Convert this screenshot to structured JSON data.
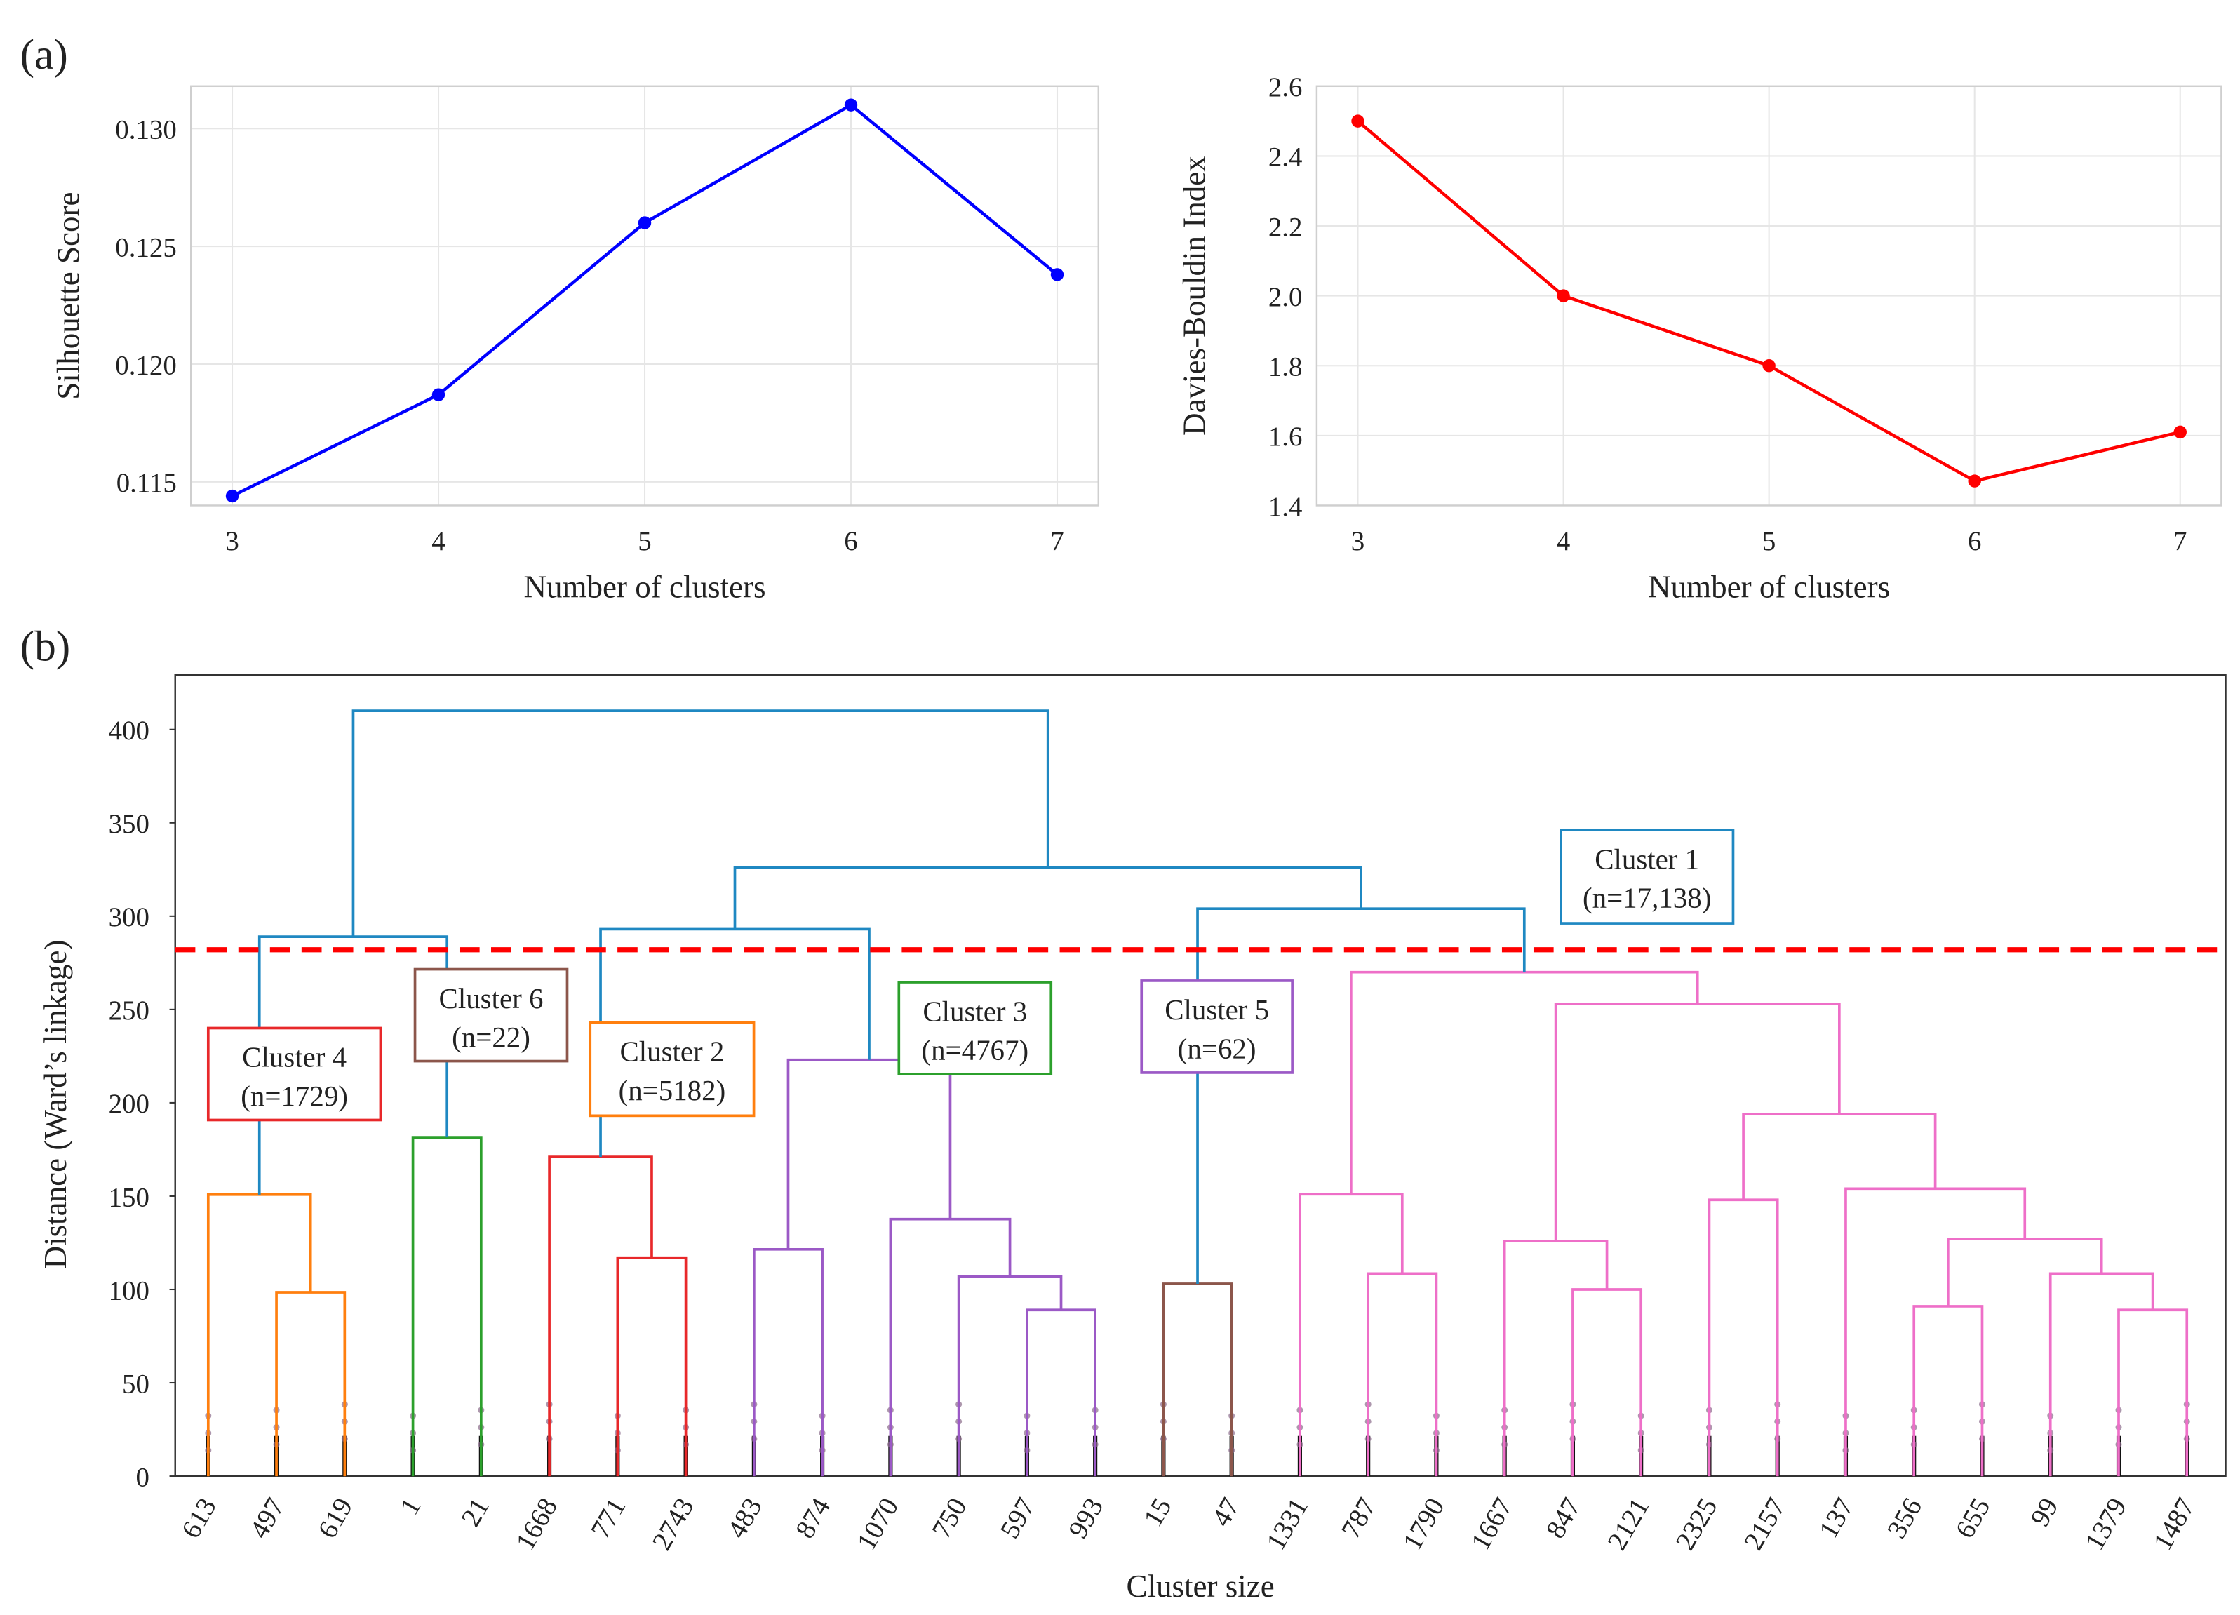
{
  "panel_labels": [
    "(a)",
    "(b)"
  ],
  "chart_data": [
    {
      "type": "line",
      "title": "",
      "xlabel": "Number of clusters",
      "ylabel": "Silhouette Score",
      "x": [
        3,
        4,
        5,
        6,
        7
      ],
      "y": [
        0.1144,
        0.1187,
        0.126,
        0.131,
        0.1238
      ],
      "xticks": [
        "3",
        "4",
        "5",
        "6",
        "7"
      ],
      "yticks": [
        0.115,
        0.12,
        0.125,
        0.13
      ],
      "ytick_labels": [
        "0.115",
        "0.120",
        "0.125",
        "0.130"
      ],
      "xlim": [
        2.8,
        7.2
      ],
      "ylim": [
        0.114,
        0.1318
      ],
      "color": "#0000ff",
      "grid": true
    },
    {
      "type": "line",
      "title": "",
      "xlabel": "Number of clusters",
      "ylabel": "Davies-Bouldin Index",
      "x": [
        3,
        4,
        5,
        6,
        7
      ],
      "y": [
        2.5,
        2.0,
        1.8,
        1.47,
        1.61
      ],
      "xticks": [
        "3",
        "4",
        "5",
        "6",
        "7"
      ],
      "yticks": [
        1.4,
        1.6,
        1.8,
        2.0,
        2.2,
        2.4,
        2.6
      ],
      "ytick_labels": [
        "1.4",
        "1.6",
        "1.8",
        "2.0",
        "2.2",
        "2.4",
        "2.6"
      ],
      "xlim": [
        2.8,
        7.2
      ],
      "ylim": [
        1.4,
        2.6
      ],
      "color": "#ff0000",
      "grid": true
    },
    {
      "type": "dendrogram",
      "xlabel": "Cluster size",
      "ylabel": "Distance (Ward’s linkage)",
      "ylim": [
        0,
        415
      ],
      "yticks": [
        0,
        50,
        100,
        150,
        200,
        250,
        300,
        350,
        400
      ],
      "ytick_labels": [
        "0",
        "50",
        "100",
        "150",
        "200",
        "250",
        "300",
        "350",
        "400"
      ],
      "cut_height": 282,
      "cut_color": "#ff0000",
      "leaves": [
        "613",
        "497",
        "619",
        "1",
        "21",
        "1668",
        "771",
        "2743",
        "483",
        "874",
        "1070",
        "750",
        "597",
        "993",
        "15",
        "47",
        "1331",
        "787",
        "1790",
        "1667",
        "847",
        "2121",
        "2325",
        "2157",
        "137",
        "356",
        "655",
        "99",
        "1379",
        "1487"
      ],
      "leaf_colors": [
        "orange",
        "orange",
        "orange",
        "green",
        "green",
        "red",
        "red",
        "red",
        "purple",
        "purple",
        "purple",
        "purple",
        "purple",
        "purple",
        "brown",
        "brown",
        "pink",
        "pink",
        "pink",
        "pink",
        "pink",
        "pink",
        "pink",
        "pink",
        "pink",
        "pink",
        "pink",
        "pink",
        "pink",
        "pink"
      ],
      "colors": {
        "orange": "#ff7f0e",
        "green": "#2ca02c",
        "red": "#e8282a",
        "purple": "#9b59c6",
        "brown": "#8c564b",
        "pink": "#ee6fc8",
        "blue": "#1f88c2"
      },
      "merges": [
        [
          1,
          2,
          98.5,
          "orange"
        ],
        [
          0,
          30,
          150.8,
          "orange"
        ],
        [
          3,
          4,
          181.5,
          "green"
        ],
        [
          31,
          32,
          289,
          "blue"
        ],
        [
          6,
          7,
          117,
          "red"
        ],
        [
          5,
          34,
          171,
          "red"
        ],
        [
          8,
          9,
          121.5,
          "purple"
        ],
        [
          12,
          13,
          89,
          "purple"
        ],
        [
          11,
          37,
          107,
          "purple"
        ],
        [
          10,
          38,
          137.7,
          "purple"
        ],
        [
          36,
          39,
          223,
          "purple"
        ],
        [
          35,
          40,
          293,
          "blue"
        ],
        [
          14,
          15,
          103,
          "brown"
        ],
        [
          17,
          18,
          108.5,
          "pink"
        ],
        [
          16,
          43,
          151,
          "pink"
        ],
        [
          20,
          21,
          100,
          "pink"
        ],
        [
          19,
          45,
          126,
          "pink"
        ],
        [
          22,
          23,
          148,
          "pink"
        ],
        [
          25,
          26,
          91,
          "pink"
        ],
        [
          28,
          29,
          89,
          "pink"
        ],
        [
          27,
          49,
          108.5,
          "pink"
        ],
        [
          48,
          50,
          127,
          "pink"
        ],
        [
          24,
          51,
          154,
          "pink"
        ],
        [
          47,
          52,
          194,
          "pink"
        ],
        [
          46,
          53,
          253,
          "pink"
        ],
        [
          44,
          54,
          270,
          "pink"
        ],
        [
          42,
          55,
          304,
          "blue"
        ],
        [
          41,
          56,
          326,
          "blue"
        ],
        [
          33,
          57,
          410,
          "blue"
        ]
      ],
      "annotations": [
        {
          "name": "cluster-4",
          "line1": "Cluster 4",
          "line2": "(n=1729)",
          "color": "#e8282a"
        },
        {
          "name": "cluster-6",
          "line1": "Cluster 6",
          "line2": "(n=22)",
          "color": "#8c564b"
        },
        {
          "name": "cluster-2",
          "line1": "Cluster 2",
          "line2": "(n=5182)",
          "color": "#ff7f0e"
        },
        {
          "name": "cluster-3",
          "line1": "Cluster 3",
          "line2": "(n=4767)",
          "color": "#2ca02c"
        },
        {
          "name": "cluster-5",
          "line1": "Cluster 5",
          "line2": "(n=62)",
          "color": "#9b59c6"
        },
        {
          "name": "cluster-1",
          "line1": "Cluster 1",
          "line2": "(n=17,138)",
          "color": "#1f88c2"
        }
      ]
    }
  ]
}
